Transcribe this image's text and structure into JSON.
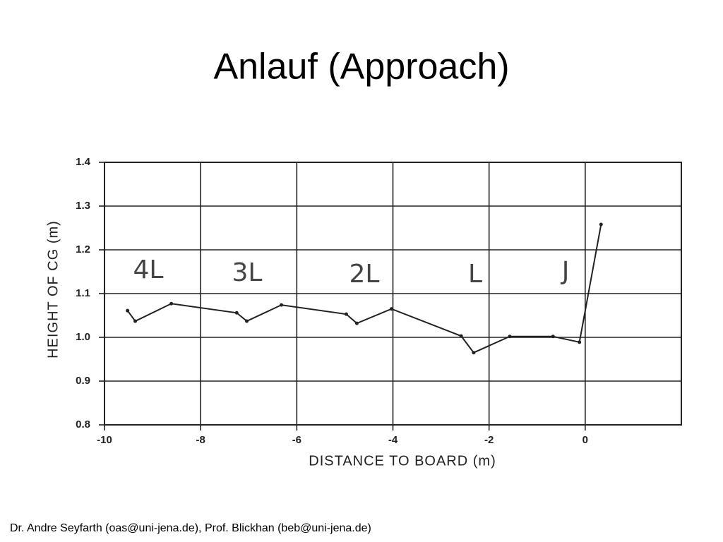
{
  "chart_data": {
    "type": "line",
    "title": "Anlauf (Approach)",
    "xlabel": "DISTANCE TO BOARD (m)",
    "ylabel": "HEIGHT OF CG (m)",
    "x": [
      -9.52,
      -9.36,
      -8.61,
      -7.25,
      -7.04,
      -6.32,
      -4.97,
      -4.75,
      -4.03,
      -2.58,
      -2.32,
      -1.57,
      -0.67,
      -0.12,
      0.33
    ],
    "values": [
      1.061,
      1.037,
      1.077,
      1.056,
      1.037,
      1.074,
      1.053,
      1.032,
      1.065,
      1.003,
      0.965,
      1.002,
      1.002,
      0.989,
      1.258
    ],
    "color": "#222222",
    "xlim": [
      -10,
      2
    ],
    "xticks": [
      -10,
      -8,
      -6,
      -4,
      -2,
      0
    ],
    "ylim": [
      0.8,
      1.4
    ],
    "yticks": [
      0.8,
      0.9,
      {
        "value": 1,
        "label": "1.0"
      },
      1.1,
      1.2,
      1.3,
      1.4
    ],
    "grid": true,
    "annotations": [
      "4L",
      "3L",
      "2L",
      "L",
      "J"
    ]
  },
  "footer": "Dr. Andre Seyfarth (oas@uni-jena.de), Prof. Blickhan (beb@uni-jena.de)"
}
